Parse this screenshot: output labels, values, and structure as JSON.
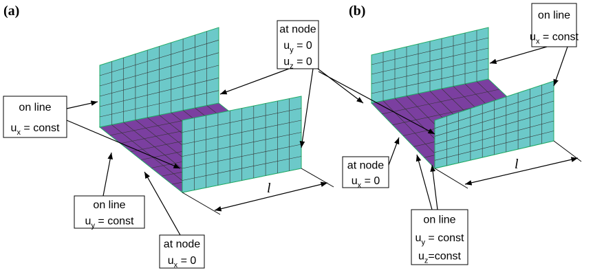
{
  "panels": [
    {
      "label": "(a)",
      "length_label": "l",
      "annotations": [
        {
          "lines": [
            "on line",
            {
              "text": "u",
              "sub": "x",
              "rest": " = const"
            }
          ]
        },
        {
          "lines": [
            "on line",
            {
              "text": "u",
              "sub": "y",
              "rest": " = const"
            }
          ]
        },
        {
          "lines": [
            "at node",
            {
              "text": "u",
              "sub": "x",
              "rest": " = 0"
            }
          ]
        }
      ]
    },
    {
      "label": "(b)",
      "length_label": "l",
      "annotations": [
        {
          "lines": [
            "on line",
            {
              "text": "u",
              "sub": "x",
              "rest": " = const"
            }
          ]
        },
        {
          "lines": [
            "at node",
            {
              "text": "u",
              "sub": "x",
              "rest": " = 0"
            }
          ]
        },
        {
          "lines": [
            "on line",
            {
              "text": "u",
              "sub": "y",
              "rest": " = const"
            },
            {
              "text": "u",
              "sub": "z",
              "rest": "=const"
            }
          ]
        }
      ]
    }
  ],
  "shared_annotation": {
    "lines": [
      "at node",
      {
        "text": "u",
        "sub": "y",
        "rest": " = 0"
      },
      {
        "text": "u",
        "sub": "z",
        "rest": " = 0"
      }
    ]
  }
}
